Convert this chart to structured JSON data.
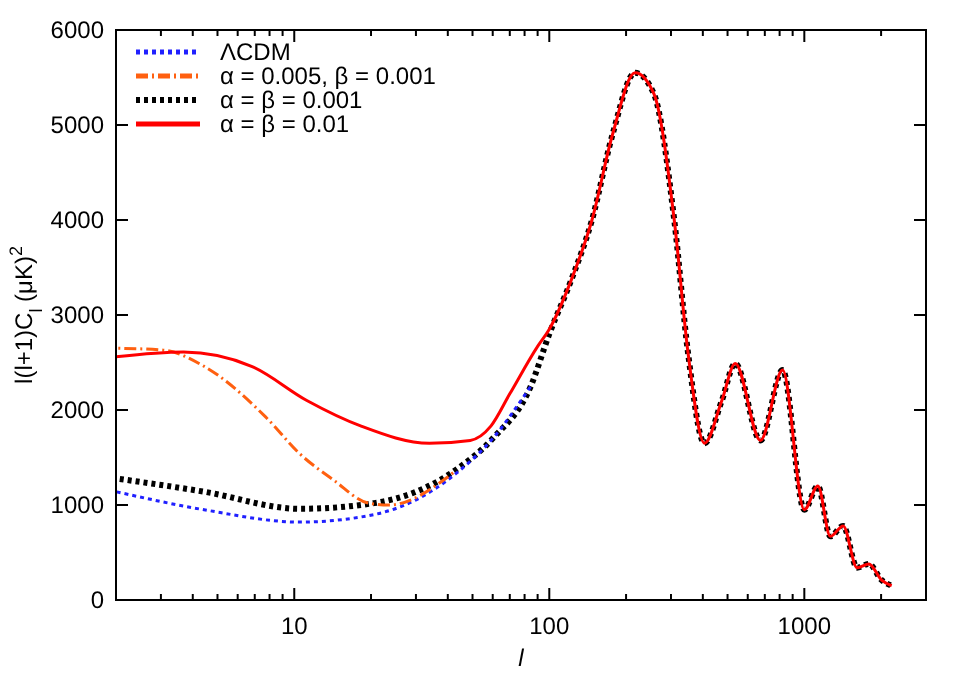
{
  "chart_data": {
    "type": "line",
    "xlabel": "l",
    "ylabel": "l(l+1)C$_{l}$ (μK)$^{2}$",
    "log": "x",
    "xlim": [
      2,
      3000
    ],
    "ylim": [
      0,
      6000
    ],
    "xticks": [
      {
        "value": 2,
        "label": null
      },
      {
        "value": 3,
        "label": null
      },
      {
        "value": 4,
        "label": null
      },
      {
        "value": 5,
        "label": null
      },
      {
        "value": 6,
        "label": null
      },
      {
        "value": 7,
        "label": null
      },
      {
        "value": 8,
        "label": null
      },
      {
        "value": 9,
        "label": null
      },
      10,
      {
        "value": 20,
        "label": null
      },
      {
        "value": 30,
        "label": null
      },
      {
        "value": 40,
        "label": null
      },
      {
        "value": 50,
        "label": null
      },
      {
        "value": 60,
        "label": null
      },
      {
        "value": 70,
        "label": null
      },
      {
        "value": 80,
        "label": null
      },
      {
        "value": 90,
        "label": null
      },
      100,
      {
        "value": 200,
        "label": null
      },
      {
        "value": 300,
        "label": null
      },
      {
        "value": 400,
        "label": null
      },
      {
        "value": 500,
        "label": null
      },
      {
        "value": 600,
        "label": null
      },
      {
        "value": 700,
        "label": null
      },
      {
        "value": 800,
        "label": null
      },
      {
        "value": 900,
        "label": null
      },
      1000,
      {
        "value": 2000,
        "label": null
      }
    ],
    "yticks": [
      0,
      1000,
      2000,
      3000,
      4000,
      5000,
      6000
    ],
    "grid": false,
    "legend": "top left",
    "series": [
      {
        "name": "ΛCDM",
        "color": "#2020ff",
        "line_style": "dotted",
        "x": [
          2,
          4.43,
          10.5,
          20.6,
          43,
          60,
          84.6
        ],
        "values": [
          1140,
          950,
          820,
          900,
          1330,
          1700,
          2250
        ]
      },
      {
        "name": "α = 0.005, β = 0.001",
        "color": "#ff6010",
        "line_style": "dashed",
        "x": [
          2,
          3.06,
          4.43,
          7.7,
          10.5,
          14.3,
          19.5,
          23.4,
          43
        ],
        "values": [
          2650,
          2630,
          2460,
          1930,
          1540,
          1260,
          1020,
          1000,
          1360
        ]
      },
      {
        "name": "α = β = 0.001",
        "color": "#000000",
        "line_style": "dotted",
        "x": [
          2,
          4.43,
          10.5,
          20.6,
          43,
          60,
          84.6,
          100,
          122,
          147,
          177,
          217,
          257,
          309,
          350,
          406,
          475,
          536,
          673,
          822,
          1000,
          1130,
          1265,
          1420,
          1610,
          1790,
          2010,
          2200
        ],
        "values": [
          1280,
          1140,
          960,
          1020,
          1370,
          1700,
          2250,
          2800,
          3370,
          4000,
          4900,
          5550,
          5330,
          4000,
          2600,
          1650,
          2100,
          2490,
          1680,
          2420,
          950,
          1200,
          670,
          780,
          340,
          380,
          210,
          150
        ]
      },
      {
        "name": "α = β = 0.01",
        "color": "#ff0000",
        "line_style": "solid",
        "x": [
          2,
          3.68,
          6.8,
          11.2,
          18.3,
          33.9,
          49,
          59,
          70,
          90,
          100,
          122,
          147,
          177,
          217,
          257,
          309,
          350,
          406,
          475,
          536,
          673,
          822,
          1000,
          1130,
          1265,
          1420,
          1610,
          1790,
          2010,
          2200
        ],
        "values": [
          2560,
          2610,
          2460,
          2100,
          1830,
          1650,
          1680,
          1830,
          2170,
          2670,
          2850,
          3370,
          4000,
          4900,
          5550,
          5330,
          4000,
          2600,
          1650,
          2100,
          2490,
          1680,
          2420,
          950,
          1200,
          670,
          780,
          340,
          380,
          210,
          150
        ]
      }
    ]
  }
}
